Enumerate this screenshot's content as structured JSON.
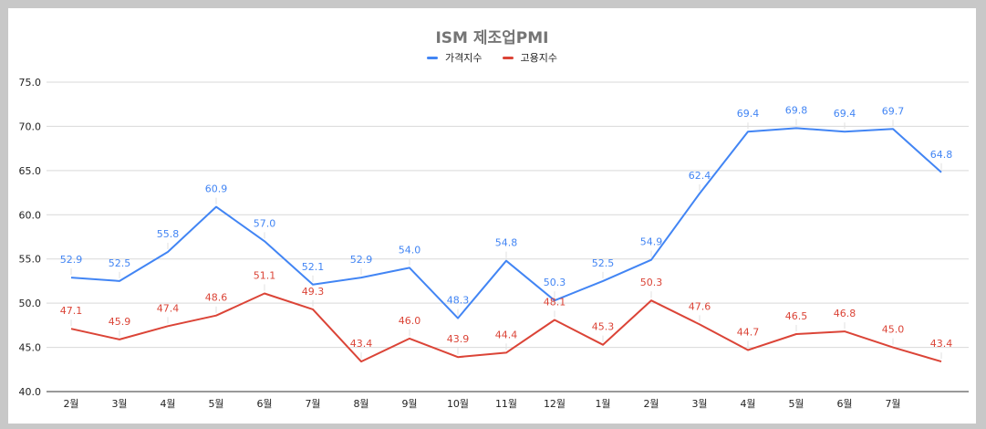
{
  "chart_data": {
    "type": "line",
    "title": "ISM 제조업PMI",
    "legend_position": "top",
    "grid": true,
    "ylim": [
      40,
      75
    ],
    "yticks": [
      "40.0",
      "45.0",
      "50.0",
      "55.0",
      "60.0",
      "65.0",
      "70.0",
      "75.0"
    ],
    "categories": [
      "2월",
      "3월",
      "4월",
      "5월",
      "6월",
      "7월",
      "8월",
      "9월",
      "10월",
      "11월",
      "12월",
      "1월",
      "2월",
      "3월",
      "4월",
      "5월",
      "6월",
      "7월",
      ""
    ],
    "series": [
      {
        "name": "가격지수",
        "color": "#4285f4",
        "values": [
          52.9,
          52.5,
          55.8,
          60.9,
          57.0,
          52.1,
          52.9,
          54.0,
          48.3,
          54.8,
          50.3,
          52.5,
          54.9,
          62.4,
          69.4,
          69.8,
          69.4,
          69.7,
          64.8
        ],
        "labels": [
          "52.9",
          "52.5",
          "55.8",
          "60.9",
          "57.0",
          "52.1",
          "52.9",
          "54.0",
          "48.3",
          "54.8",
          "50.3",
          "52.5",
          "54.9",
          "62.4",
          "69.4",
          "69.8",
          "69.4",
          "69.7",
          "64.8"
        ]
      },
      {
        "name": "고용지수",
        "color": "#db4437",
        "values": [
          47.1,
          45.9,
          47.4,
          48.6,
          51.1,
          49.3,
          43.4,
          46.0,
          43.9,
          44.4,
          48.1,
          45.3,
          50.3,
          47.6,
          44.7,
          46.5,
          46.8,
          45.0,
          43.4
        ],
        "labels": [
          "47.1",
          "45.9",
          "47.4",
          "48.6",
          "51.1",
          "49.3",
          "43.4",
          "46.0",
          "43.9",
          "44.4",
          "48.1",
          "45.3",
          "50.3",
          "47.6",
          "44.7",
          "46.5",
          "46.8",
          "45.0",
          "43.4"
        ]
      }
    ]
  }
}
